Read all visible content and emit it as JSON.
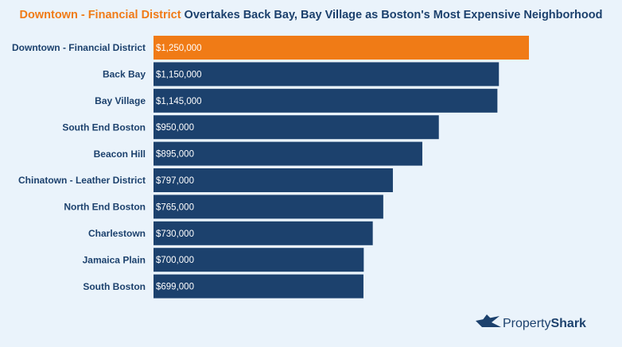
{
  "chart_data": {
    "type": "bar",
    "orientation": "horizontal",
    "title_highlight": "Downtown - Financial District",
    "title": "Overtakes Back Bay, Bay Village as Boston's Most Expensive Neighborhood",
    "categories": [
      "Downtown - Financial District",
      "Back Bay",
      "Bay Village",
      "South End Boston",
      "Beacon Hill",
      "Chinatown - Leather District",
      "North End Boston",
      "Charlestown",
      "Jamaica Plain",
      "South Boston"
    ],
    "values": [
      1250000,
      1150000,
      1145000,
      950000,
      895000,
      797000,
      765000,
      730000,
      700000,
      699000
    ],
    "value_labels": [
      "$1,250,000",
      "$1,150,000",
      "$1,145,000",
      "$950,000",
      "$895,000",
      "$797,000",
      "$765,000",
      "$730,000",
      "$700,000",
      "$699,000"
    ],
    "colors": [
      "#f07b16",
      "#1c416d",
      "#1c416d",
      "#1c416d",
      "#1c416d",
      "#1c416d",
      "#1c416d",
      "#1c416d",
      "#1c416d",
      "#1c416d"
    ]
  },
  "branding": {
    "name_regular": "Property",
    "name_bold": "Shark"
  }
}
